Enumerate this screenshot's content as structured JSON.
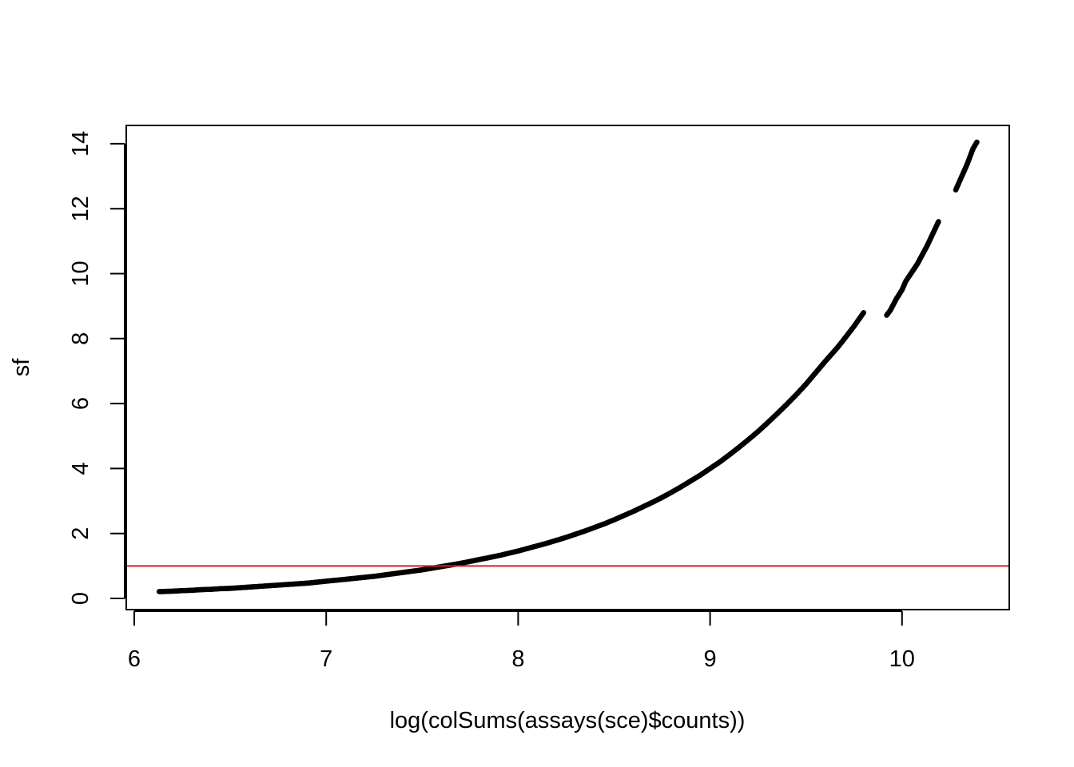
{
  "chart_data": {
    "type": "scatter",
    "title": "",
    "xlabel": "log(colSums(assays(sce)$counts))",
    "ylabel": "sf",
    "xlim": [
      6,
      10.5
    ],
    "ylim": [
      0,
      14
    ],
    "x_ticks": [
      "6",
      "7",
      "8",
      "9",
      "10"
    ],
    "y_ticks": [
      "0",
      "2",
      "4",
      "6",
      "8",
      "10",
      "12",
      "14"
    ],
    "grid": false,
    "legend": "none",
    "point_color": "#000000",
    "series": [
      {
        "x": [
          6.13,
          6.15,
          6.17,
          6.19,
          6.22,
          6.25,
          6.3,
          6.35,
          6.4,
          6.45,
          6.5,
          6.55,
          6.6,
          6.65,
          6.7,
          6.75,
          6.8,
          6.85,
          6.9,
          6.95,
          7.0,
          7.05,
          7.1,
          7.15,
          7.2,
          7.25,
          7.3,
          7.35,
          7.4,
          7.45,
          7.5,
          7.55,
          7.6,
          7.65,
          7.7,
          7.75,
          7.8,
          7.85,
          7.9,
          7.95,
          8.0,
          8.05,
          8.1,
          8.15,
          8.2,
          8.25,
          8.3,
          8.35,
          8.4,
          8.45,
          8.5,
          8.55,
          8.6,
          8.65,
          8.7,
          8.75,
          8.8,
          8.85,
          8.9,
          8.95,
          9.0,
          9.05,
          9.1,
          9.15,
          9.2,
          9.25,
          9.3,
          9.35,
          9.4,
          9.45,
          9.5,
          9.55,
          9.6,
          9.63,
          9.66,
          9.69,
          9.72,
          9.75,
          9.77,
          9.8,
          9.92,
          9.94,
          9.97,
          10.0,
          10.02,
          10.08,
          10.13,
          10.19,
          10.28,
          10.34,
          10.37,
          10.39
        ],
        "y": [
          0.21,
          0.21,
          0.22,
          0.22,
          0.23,
          0.24,
          0.25,
          0.27,
          0.28,
          0.3,
          0.31,
          0.33,
          0.35,
          0.37,
          0.39,
          0.41,
          0.43,
          0.45,
          0.47,
          0.5,
          0.53,
          0.56,
          0.59,
          0.62,
          0.65,
          0.68,
          0.72,
          0.76,
          0.8,
          0.84,
          0.88,
          0.93,
          0.98,
          1.03,
          1.08,
          1.14,
          1.2,
          1.26,
          1.32,
          1.39,
          1.46,
          1.54,
          1.62,
          1.7,
          1.79,
          1.88,
          1.98,
          2.08,
          2.19,
          2.3,
          2.42,
          2.55,
          2.68,
          2.82,
          2.96,
          3.11,
          3.27,
          3.44,
          3.62,
          3.8,
          4.0,
          4.2,
          4.42,
          4.65,
          4.89,
          5.14,
          5.41,
          5.69,
          5.98,
          6.28,
          6.6,
          6.95,
          7.3,
          7.5,
          7.7,
          7.92,
          8.15,
          8.38,
          8.55,
          8.8,
          8.72,
          8.88,
          9.22,
          9.5,
          9.77,
          10.3,
          10.85,
          11.6,
          12.58,
          13.38,
          13.85,
          14.05
        ]
      }
    ],
    "reference_lines": [
      {
        "orientation": "horizontal",
        "y": 1,
        "color": "#e31a1c"
      }
    ]
  }
}
